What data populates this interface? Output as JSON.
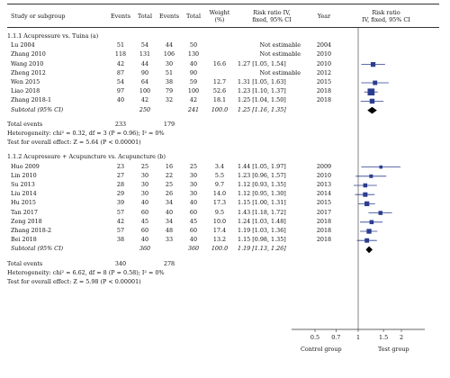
{
  "header": {
    "study": "Study or subgroup",
    "exp_events": "Events",
    "exp_total": "Total",
    "ctl_events": "Events",
    "ctl_total": "Total",
    "weight": [
      "Weight",
      "(%)"
    ],
    "rr_text": [
      "Risk ratio IV,",
      "fixed, 95% CI"
    ],
    "year": "Year",
    "rr_plot": [
      "Risk ratio",
      "IV, fixed, 95% CI"
    ]
  },
  "groups": [
    {
      "title": "1.1.1 Acupressure vs. Tuina (a)",
      "studies": [
        {
          "name": "Lu 2004",
          "e1": "51",
          "t1": "54",
          "e2": "44",
          "t2": "50",
          "w": "",
          "ci": "Not estimable",
          "year": "2004",
          "rr": null
        },
        {
          "name": "Zhang 2010",
          "e1": "118",
          "t1": "131",
          "e2": "106",
          "t2": "130",
          "w": "",
          "ci": "Not estimable",
          "year": "2010",
          "rr": null
        },
        {
          "name": "Wang 2010",
          "e1": "42",
          "t1": "44",
          "e2": "30",
          "t2": "40",
          "w": "16.6",
          "ci": "1.27 [1.05, 1.54]",
          "year": "2010",
          "rr": 1.27,
          "lo": 1.05,
          "hi": 1.54
        },
        {
          "name": "Zheng 2012",
          "e1": "87",
          "t1": "90",
          "e2": "51",
          "t2": "90",
          "w": "",
          "ci": "Not estimable",
          "year": "2012",
          "rr": null
        },
        {
          "name": "Wen 2015",
          "e1": "54",
          "t1": "64",
          "e2": "38",
          "t2": "59",
          "w": "12.7",
          "ci": "1.31 [1.05, 1.63]",
          "year": "2015",
          "rr": 1.31,
          "lo": 1.05,
          "hi": 1.63
        },
        {
          "name": "Liao 2018",
          "e1": "97",
          "t1": "100",
          "e2": "79",
          "t2": "100",
          "w": "52.6",
          "ci": "1.23 [1.10, 1.37]",
          "year": "2018",
          "rr": 1.23,
          "lo": 1.1,
          "hi": 1.37
        },
        {
          "name": "Zhang 2018-1",
          "e1": "40",
          "t1": "42",
          "e2": "32",
          "t2": "42",
          "w": "18.1",
          "ci": "1.25 [1.04, 1.50]",
          "year": "2018",
          "rr": 1.25,
          "lo": 1.04,
          "hi": 1.5
        }
      ],
      "subtotal": {
        "label": "Subtotal (95% CI)",
        "t1": "250",
        "t2": "241",
        "w": "100.0",
        "ci": "1.25 [1.16, 1.35]",
        "rr": 1.25,
        "lo": 1.16,
        "hi": 1.35
      },
      "total_events": {
        "label": "Total events",
        "e1": "233",
        "e2": "179"
      },
      "heterogeneity": "Heterogeneity: chi² = 0.32, df = 3 (P = 0.96); I² = 0%",
      "overall": "Test for overall effect: Z = 5.64 (P < 0.00001)"
    },
    {
      "title": "1.1.2 Acupressure + Acupuncture vs. Acupuncture (b)",
      "studies": [
        {
          "name": "Huo 2009",
          "e1": "23",
          "t1": "25",
          "e2": "16",
          "t2": "25",
          "w": "3.4",
          "ci": "1.44 [1.05, 1.97]",
          "year": "2009",
          "rr": 1.44,
          "lo": 1.05,
          "hi": 1.97
        },
        {
          "name": "Lin 2010",
          "e1": "27",
          "t1": "30",
          "e2": "22",
          "t2": "30",
          "w": "5.5",
          "ci": "1.23 [0.96, 1.57]",
          "year": "2010",
          "rr": 1.23,
          "lo": 0.96,
          "hi": 1.57
        },
        {
          "name": "Su 2013",
          "e1": "28",
          "t1": "30",
          "e2": "25",
          "t2": "30",
          "w": "9.7",
          "ci": "1.12 [0.93, 1.35]",
          "year": "2013",
          "rr": 1.12,
          "lo": 0.93,
          "hi": 1.35
        },
        {
          "name": "Liu 2014",
          "e1": "29",
          "t1": "30",
          "e2": "26",
          "t2": "30",
          "w": "14.0",
          "ci": "1.12 [0.95, 1.30]",
          "year": "2014",
          "rr": 1.12,
          "lo": 0.95,
          "hi": 1.3
        },
        {
          "name": "Hu 2015",
          "e1": "39",
          "t1": "40",
          "e2": "34",
          "t2": "40",
          "w": "17.3",
          "ci": "1.15 [1.00, 1.31]",
          "year": "2015",
          "rr": 1.15,
          "lo": 1.0,
          "hi": 1.31
        },
        {
          "name": "Tan 2017",
          "e1": "57",
          "t1": "60",
          "e2": "40",
          "t2": "60",
          "w": "9.5",
          "ci": "1.43 [1.18, 1.72]",
          "year": "2017",
          "rr": 1.43,
          "lo": 1.18,
          "hi": 1.72
        },
        {
          "name": "Zeng 2018",
          "e1": "42",
          "t1": "45",
          "e2": "34",
          "t2": "45",
          "w": "10.0",
          "ci": "1.24 [1.03, 1.48]",
          "year": "2018",
          "rr": 1.24,
          "lo": 1.03,
          "hi": 1.48
        },
        {
          "name": "Zhang 2018-2",
          "e1": "57",
          "t1": "60",
          "e2": "48",
          "t2": "60",
          "w": "17.4",
          "ci": "1.19 [1.03, 1.36]",
          "year": "2018",
          "rr": 1.19,
          "lo": 1.03,
          "hi": 1.36
        },
        {
          "name": "Bei 2018",
          "e1": "38",
          "t1": "40",
          "e2": "33",
          "t2": "40",
          "w": "13.2",
          "ci": "1.15 [0.98, 1.35]",
          "year": "2018",
          "rr": 1.15,
          "lo": 0.98,
          "hi": 1.35
        }
      ],
      "subtotal": {
        "label": "Subtotal (95% CI)",
        "t1": "360",
        "t2": "360",
        "w": "100.0",
        "ci": "1.19 [1.13, 1.26]",
        "rr": 1.19,
        "lo": 1.13,
        "hi": 1.26
      },
      "total_events": {
        "label": "Total events",
        "e1": "340",
        "e2": "278"
      },
      "heterogeneity": "Heterogeneity: chi² = 6.62, df = 8 (P = 0.58); I² = 0%",
      "overall": "Test for overall effect: Z = 5.98 (P < 0.00001)"
    }
  ],
  "axis": {
    "ticks": [
      0.5,
      0.7,
      1,
      1.5,
      2
    ],
    "tick_labels": [
      "0.5",
      "0.7",
      "1",
      "1.5",
      "2"
    ],
    "left_label": "Control group",
    "right_label": "Test group",
    "scale": "log",
    "range": [
      0.5,
      2
    ]
  },
  "colors": {
    "marker": "#2b3d8f",
    "diamond": "#000000",
    "line": "#333333"
  }
}
